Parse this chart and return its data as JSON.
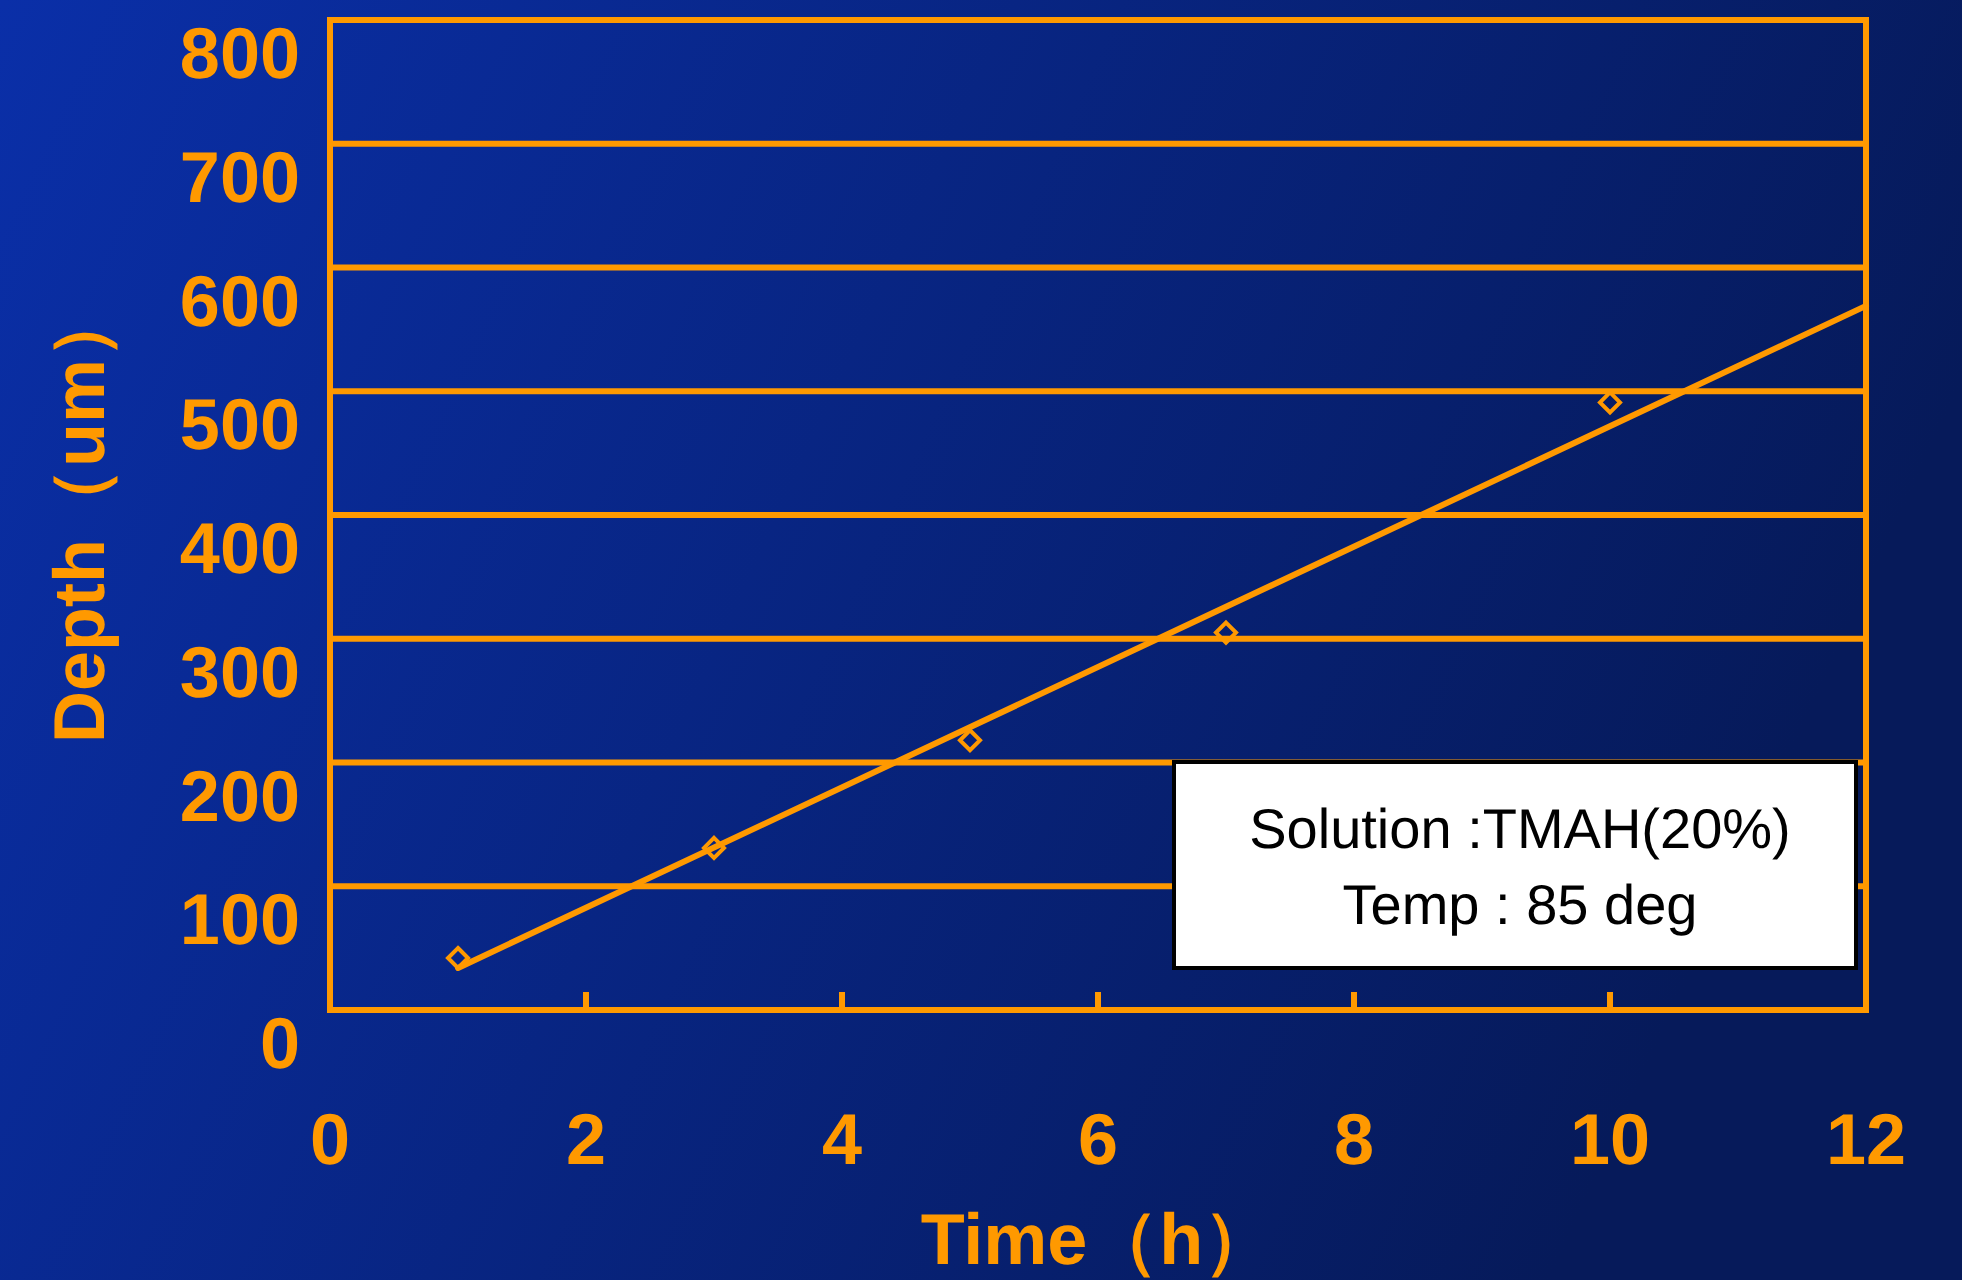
{
  "chart_data": {
    "type": "scatter",
    "xlabel": "Time（h）",
    "ylabel": "Depth（um）",
    "xlim": [
      0,
      12
    ],
    "xticks": [
      0,
      2,
      4,
      6,
      8,
      10,
      12
    ],
    "ylim": [
      0,
      800
    ],
    "yticks": [
      0,
      100,
      200,
      300,
      400,
      500,
      600,
      700,
      800
    ],
    "grid": "y",
    "series": [
      {
        "color": "#ff9900",
        "x": [
          1,
          3,
          5,
          7,
          10
        ],
        "values": [
          42,
          131,
          218,
          305,
          491
        ],
        "marker": "diamond"
      },
      {
        "type": "line",
        "color": "#ff9900",
        "x": [
          1,
          12
        ],
        "values": [
          34,
          569
        ],
        "marker": "none",
        "line_style": "solid"
      }
    ],
    "annotations": [
      "Solution :TMAH(20%)",
      "Temp : 85 deg"
    ]
  }
}
